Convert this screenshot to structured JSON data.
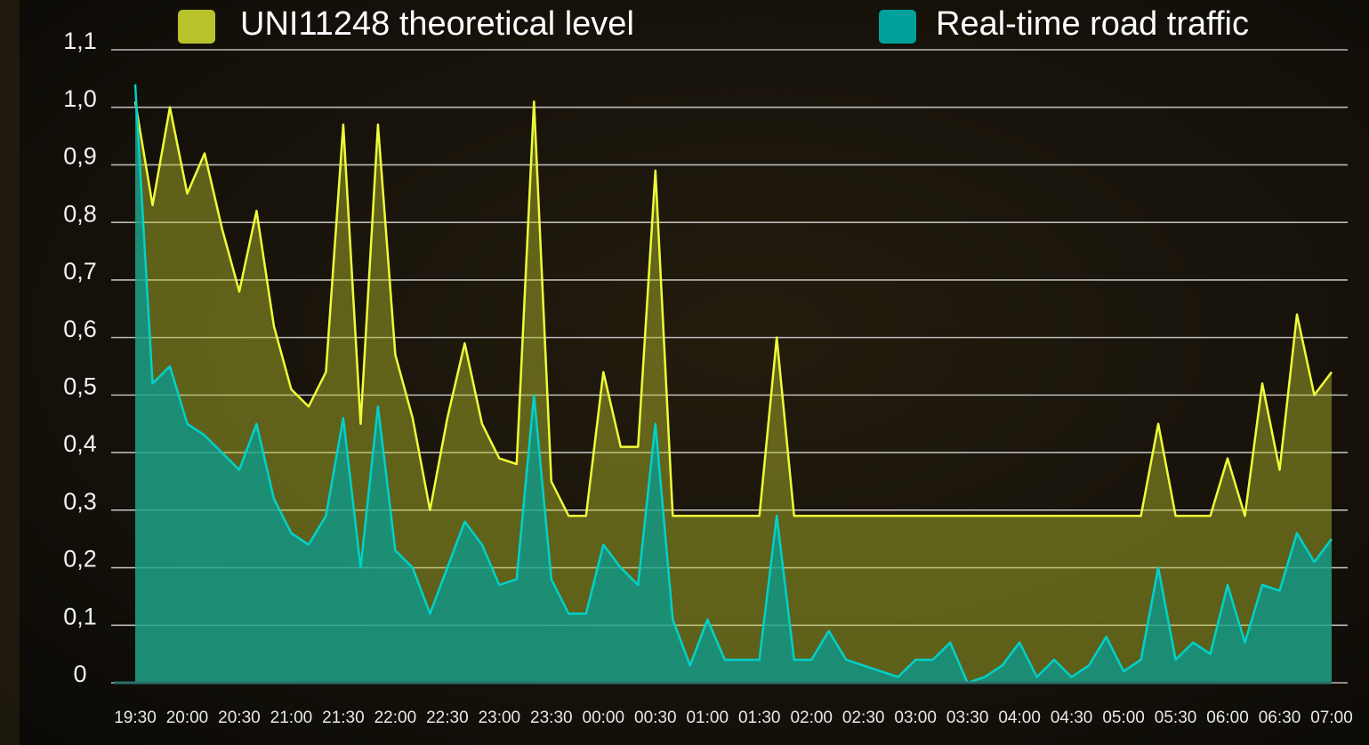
{
  "chart_data": {
    "type": "area",
    "categories": [
      "19:30",
      null,
      null,
      "20:00",
      null,
      null,
      "20:30",
      null,
      null,
      "21:00",
      null,
      null,
      "21:30",
      null,
      null,
      "22:00",
      null,
      null,
      "22:30",
      null,
      null,
      "23:00",
      null,
      null,
      "23:30",
      null,
      null,
      "00:00",
      null,
      null,
      "00:30",
      null,
      null,
      "01:00",
      null,
      null,
      "01:30",
      null,
      null,
      "02:00",
      null,
      null,
      "02:30",
      null,
      null,
      "03:00",
      null,
      null,
      "03:30",
      null,
      null,
      "04:00",
      null,
      null,
      "04:30",
      null,
      null,
      "05:00",
      null,
      null,
      "05:30",
      null,
      null,
      "06:00",
      null,
      null,
      "06:30",
      null,
      null,
      "07:00"
    ],
    "series": [
      {
        "name": "UNI11248 theoretical level",
        "color": "#b7c22c",
        "values": [
          1.01,
          0.83,
          1.0,
          0.85,
          0.92,
          0.79,
          0.68,
          0.82,
          0.62,
          0.51,
          0.48,
          0.54,
          0.97,
          0.45,
          0.97,
          0.57,
          0.46,
          0.3,
          0.46,
          0.59,
          0.45,
          0.39,
          0.38,
          1.01,
          0.35,
          0.29,
          0.29,
          0.54,
          0.41,
          0.41,
          0.89,
          0.29,
          0.29,
          0.29,
          0.29,
          0.29,
          0.29,
          0.6,
          0.29,
          0.29,
          0.29,
          0.29,
          0.29,
          0.29,
          0.29,
          0.29,
          0.29,
          0.29,
          0.29,
          0.29,
          0.29,
          0.29,
          0.29,
          0.29,
          0.29,
          0.29,
          0.29,
          0.29,
          0.29,
          0.45,
          0.29,
          0.29,
          0.29,
          0.39,
          0.29,
          0.52,
          0.37,
          0.64,
          0.5,
          0.54
        ]
      },
      {
        "name": "Real-time road traffic",
        "color": "#00a19b",
        "values": [
          1.04,
          0.52,
          0.55,
          0.45,
          0.43,
          0.4,
          0.37,
          0.45,
          0.32,
          0.26,
          0.24,
          0.29,
          0.46,
          0.2,
          0.48,
          0.23,
          0.2,
          0.12,
          0.2,
          0.28,
          0.24,
          0.17,
          0.18,
          0.5,
          0.18,
          0.12,
          0.12,
          0.24,
          0.2,
          0.17,
          0.45,
          0.11,
          0.03,
          0.11,
          0.04,
          0.04,
          0.04,
          0.29,
          0.04,
          0.04,
          0.09,
          0.04,
          0.03,
          0.02,
          0.01,
          0.04,
          0.04,
          0.07,
          0.0,
          0.01,
          0.03,
          0.07,
          0.01,
          0.04,
          0.01,
          0.03,
          0.08,
          0.02,
          0.04,
          0.2,
          0.04,
          0.07,
          0.05,
          0.17,
          0.07,
          0.17,
          0.16,
          0.26,
          0.21,
          0.25
        ]
      }
    ],
    "ylim": [
      0,
      1.1
    ],
    "yticks": [
      {
        "value": 0,
        "label": "0"
      },
      {
        "value": 0.1,
        "label": "0,1"
      },
      {
        "value": 0.2,
        "label": "0,2"
      },
      {
        "value": 0.3,
        "label": "0,3"
      },
      {
        "value": 0.4,
        "label": "0,4"
      },
      {
        "value": 0.5,
        "label": "0,5"
      },
      {
        "value": 0.6,
        "label": "0,6"
      },
      {
        "value": 0.7,
        "label": "0,7"
      },
      {
        "value": 0.8,
        "label": "0,8"
      },
      {
        "value": 0.9,
        "label": "0,9"
      },
      {
        "value": 1.0,
        "label": "1,0"
      },
      {
        "value": 1.1,
        "label": "1,1"
      }
    ],
    "grid": true
  }
}
